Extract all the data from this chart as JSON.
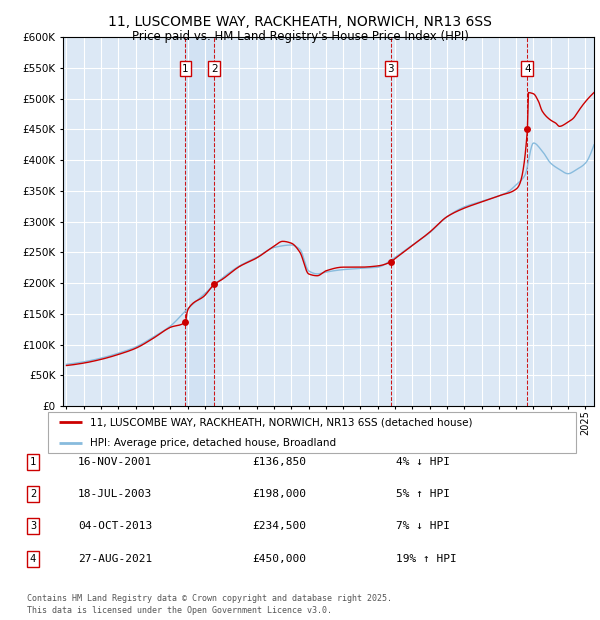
{
  "title": "11, LUSCOMBE WAY, RACKHEATH, NORWICH, NR13 6SS",
  "subtitle": "Price paid vs. HM Land Registry's House Price Index (HPI)",
  "background_color": "#ffffff",
  "plot_bg_color": "#dce8f5",
  "grid_color": "#ffffff",
  "transaction_label_color": "#cc0000",
  "hpi_line_color": "#88bbdd",
  "price_line_color": "#cc0000",
  "transactions": [
    {
      "num": 1,
      "date_num": 2001.88,
      "price": 136850
    },
    {
      "num": 2,
      "date_num": 2003.54,
      "price": 198000
    },
    {
      "num": 3,
      "date_num": 2013.75,
      "price": 234500
    },
    {
      "num": 4,
      "date_num": 2021.65,
      "price": 450000
    }
  ],
  "legend_line1": "11, LUSCOMBE WAY, RACKHEATH, NORWICH, NR13 6SS (detached house)",
  "legend_line2": "HPI: Average price, detached house, Broadland",
  "footer": "Contains HM Land Registry data © Crown copyright and database right 2025.\nThis data is licensed under the Open Government Licence v3.0.",
  "table_rows": [
    {
      "num": 1,
      "date": "16-NOV-2001",
      "price": "£136,850",
      "pct": "4% ↓ HPI"
    },
    {
      "num": 2,
      "date": "18-JUL-2003",
      "price": "£198,000",
      "pct": "5% ↑ HPI"
    },
    {
      "num": 3,
      "date": "04-OCT-2013",
      "price": "£234,500",
      "pct": "7% ↓ HPI"
    },
    {
      "num": 4,
      "date": "27-AUG-2021",
      "price": "£450,000",
      "pct": "19% ↑ HPI"
    }
  ],
  "ylim": [
    0,
    600000
  ],
  "xlim_start": 1995,
  "xlim_end": 2025.5,
  "hpi_keypoints_x": [
    1995,
    1996,
    1997,
    1998,
    1999,
    2000,
    2001,
    2002,
    2003,
    2004,
    2005,
    2006,
    2007,
    2008,
    2008.5,
    2009,
    2009.5,
    2010,
    2011,
    2012,
    2013,
    2014,
    2015,
    2016,
    2017,
    2018,
    2019,
    2020,
    2020.5,
    2021,
    2021.5,
    2022,
    2022.5,
    2023,
    2023.5,
    2024,
    2024.5,
    2025,
    2025.5
  ],
  "hpi_keypoints_y": [
    68000,
    72000,
    78000,
    86000,
    96000,
    112000,
    130000,
    158000,
    183000,
    208000,
    228000,
    242000,
    258000,
    262000,
    255000,
    220000,
    215000,
    218000,
    222000,
    224000,
    226000,
    242000,
    262000,
    282000,
    308000,
    324000,
    333000,
    342000,
    348000,
    360000,
    375000,
    428000,
    415000,
    395000,
    385000,
    378000,
    385000,
    395000,
    425000
  ],
  "price_keypoints_x": [
    1995,
    1996,
    1997,
    1998,
    1999,
    2000,
    2001,
    2001.88,
    2002,
    2003,
    2003.54,
    2004,
    2005,
    2006,
    2007,
    2007.5,
    2008,
    2008.5,
    2009,
    2009.5,
    2010,
    2011,
    2012,
    2013,
    2013.75,
    2014,
    2015,
    2016,
    2017,
    2018,
    2019,
    2020,
    2021,
    2021.65,
    2021.68,
    2022,
    2022.3,
    2022.5,
    2023,
    2023.3,
    2023.5,
    2024,
    2024.3,
    2024.6,
    2025,
    2025.5
  ],
  "price_keypoints_y": [
    66000,
    70000,
    76000,
    84000,
    94000,
    110000,
    128000,
    136850,
    156000,
    180000,
    198000,
    206000,
    227000,
    241000,
    260000,
    268000,
    265000,
    250000,
    215000,
    212000,
    220000,
    226000,
    226000,
    228000,
    234500,
    240000,
    261000,
    283000,
    308000,
    322000,
    332000,
    342000,
    353000,
    450000,
    510000,
    508000,
    495000,
    480000,
    465000,
    460000,
    455000,
    462000,
    468000,
    480000,
    495000,
    510000
  ]
}
